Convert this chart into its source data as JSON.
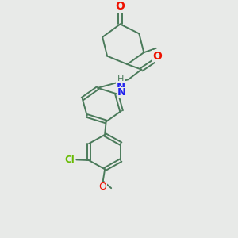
{
  "bg_color": "#e8eae8",
  "bond_color": "#4a7a5a",
  "atom_colors": {
    "O": "#ee1100",
    "N": "#2222ee",
    "Cl": "#66bb00",
    "C": "#4a7a5a"
  },
  "font_size": 8.5,
  "fig_size": [
    3.0,
    3.0
  ],
  "dpi": 100
}
